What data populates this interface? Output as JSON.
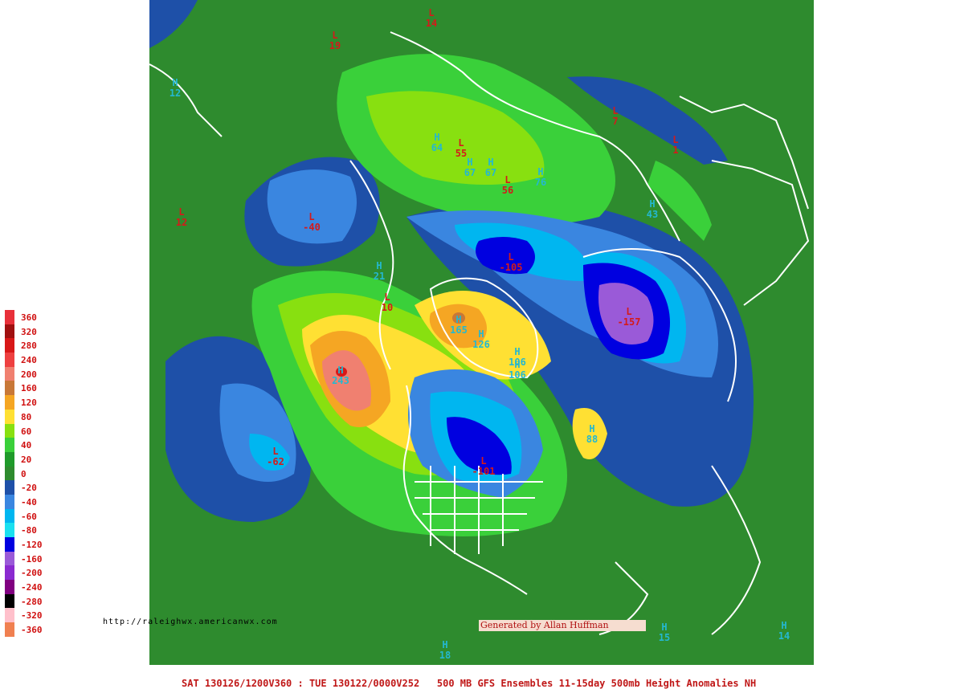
{
  "footer": {
    "title": "SAT 130126/1200V360 : TUE 130122/0000V252   500 MB GFS Ensembles 11-15day 500mb Height Anomalies NH",
    "url": "http://raleighwx.americanwx.com",
    "credit": "Generated by Allan Huffman"
  },
  "legend": [
    {
      "label": "360",
      "color": "#e8303a"
    },
    {
      "label": "320",
      "color": "#a01010"
    },
    {
      "label": "280",
      "color": "#d81818"
    },
    {
      "label": "240",
      "color": "#ee4040"
    },
    {
      "label": "200",
      "color": "#f08070"
    },
    {
      "label": "160",
      "color": "#c87838"
    },
    {
      "label": "120",
      "color": "#f5a623"
    },
    {
      "label": "80",
      "color": "#ffe033"
    },
    {
      "label": "60",
      "color": "#88e010"
    },
    {
      "label": "40",
      "color": "#3ad03a"
    },
    {
      "label": "20",
      "color": "#1f9a2a"
    },
    {
      "label": "0",
      "color": "#2e8b2e"
    },
    {
      "label": "-20",
      "color": "#1e50a8"
    },
    {
      "label": "-40",
      "color": "#3a86e0"
    },
    {
      "label": "-60",
      "color": "#00b6f0"
    },
    {
      "label": "-80",
      "color": "#1ae0f0"
    },
    {
      "label": "-120",
      "color": "#0000e0"
    },
    {
      "label": "-160",
      "color": "#9a5ad8"
    },
    {
      "label": "-200",
      "color": "#8a2ad0"
    },
    {
      "label": "-240",
      "color": "#800080"
    },
    {
      "label": "-280",
      "color": "#000000"
    },
    {
      "label": "-320",
      "color": "#ffc0cb"
    },
    {
      "label": "-360",
      "color": "#f08050"
    }
  ],
  "centers": [
    {
      "type": "H",
      "value": "243",
      "name": "center-h-243"
    },
    {
      "type": "H",
      "value": "165",
      "name": "center-h-165"
    },
    {
      "type": "H",
      "value": "126",
      "name": "center-h-126"
    },
    {
      "type": "H",
      "value": "106",
      "name": "center-h-106a"
    },
    {
      "type": "H",
      "value": "106",
      "name": "center-h-106b"
    },
    {
      "type": "H",
      "value": "88",
      "name": "center-h-88"
    },
    {
      "type": "H",
      "value": "21",
      "name": "center-h-21"
    },
    {
      "type": "H",
      "value": "67",
      "name": "center-h-67a"
    },
    {
      "type": "H",
      "value": "67",
      "name": "center-h-67b"
    },
    {
      "type": "H",
      "value": "76",
      "name": "center-h-76"
    },
    {
      "type": "H",
      "value": "64",
      "name": "center-h-64"
    },
    {
      "type": "H",
      "value": "43",
      "name": "center-h-43"
    },
    {
      "type": "H",
      "value": "18",
      "name": "center-h-18"
    },
    {
      "type": "H",
      "value": "14",
      "name": "center-h-14"
    },
    {
      "type": "H",
      "value": "15",
      "name": "center-h-15"
    },
    {
      "type": "H",
      "value": "12",
      "name": "center-h-12"
    },
    {
      "type": "L",
      "value": "-157",
      "name": "center-l-157"
    },
    {
      "type": "L",
      "value": "-105",
      "name": "center-l-105"
    },
    {
      "type": "L",
      "value": "-101",
      "name": "center-l-101"
    },
    {
      "type": "L",
      "value": "-62",
      "name": "center-l-62"
    },
    {
      "type": "L",
      "value": "-40",
      "name": "center-l-40"
    },
    {
      "type": "L",
      "value": "55",
      "name": "center-l-55"
    },
    {
      "type": "L",
      "value": "56",
      "name": "center-l-56"
    },
    {
      "type": "L",
      "value": "10",
      "name": "center-l-10"
    },
    {
      "type": "L",
      "value": "19",
      "name": "center-l-19"
    },
    {
      "type": "L",
      "value": "14",
      "name": "center-l-14"
    },
    {
      "type": "L",
      "value": "12",
      "name": "center-l-12"
    },
    {
      "type": "L",
      "value": "7",
      "name": "center-l-7"
    },
    {
      "type": "L",
      "value": "1",
      "name": "center-l-1"
    }
  ]
}
